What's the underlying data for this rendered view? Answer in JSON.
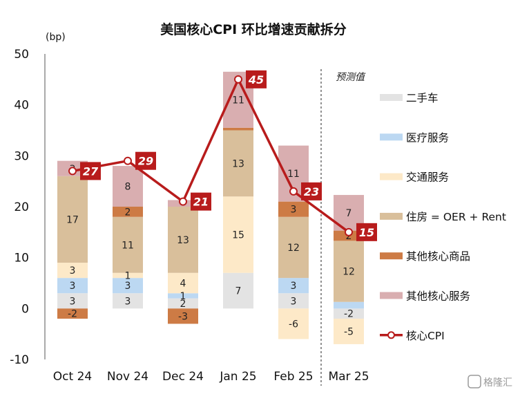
{
  "chart_data": {
    "type": "bar",
    "title": "美国核心CPI 环比增速贡献拆分",
    "ylabel": "(bp)",
    "ylim": [
      -10,
      50
    ],
    "yticks": [
      -10,
      0,
      10,
      20,
      30,
      40,
      50
    ],
    "categories": [
      "Oct 24",
      "Nov 24",
      "Dec 24",
      "Jan 25",
      "Feb 25",
      "Mar 25"
    ],
    "forecast_label": "预测值",
    "forecast_start_index": 5,
    "legend_position": "right",
    "bar_series": [
      {
        "name": "二手车",
        "color": "#e3e3e3",
        "values": [
          3,
          3,
          2,
          7,
          3,
          -2
        ],
        "labels": [
          "3",
          "3",
          "2",
          "7",
          "3",
          "-2"
        ]
      },
      {
        "name": "医疗服务",
        "color": "#bcd8f2",
        "values": [
          3,
          3,
          1,
          0,
          3,
          1.3
        ],
        "labels": [
          "3",
          "3",
          "1",
          "0",
          "3",
          ""
        ]
      },
      {
        "name": "交通服务",
        "color": "#fde9c8",
        "values": [
          3,
          1,
          4,
          15,
          -6,
          -5
        ],
        "labels": [
          "3",
          "1",
          "4",
          "15",
          "-6",
          "-5"
        ]
      },
      {
        "name": "住房 = OER + Rent",
        "color": "#d9bf9b",
        "values": [
          17,
          11,
          13,
          13,
          12,
          12
        ],
        "labels": [
          "17",
          "11",
          "13",
          "13",
          "12",
          "12"
        ]
      },
      {
        "name": "其他核心商品",
        "color": "#cd7b45",
        "values": [
          -2,
          2,
          -3,
          0.5,
          3,
          2
        ],
        "labels": [
          "-2",
          "2",
          "-3",
          "",
          "3",
          "2"
        ]
      },
      {
        "name": "其他核心服务",
        "color": "#d9aeb0",
        "values": [
          3,
          8,
          1.3,
          11,
          11,
          7
        ],
        "labels": [
          "3",
          "8",
          "",
          "11",
          "11",
          "7"
        ]
      }
    ],
    "line_series": {
      "name": "核心CPI",
      "color": "#b81c1c",
      "values": [
        27,
        29,
        21,
        45,
        23,
        15
      ]
    }
  },
  "watermark": "格隆汇"
}
